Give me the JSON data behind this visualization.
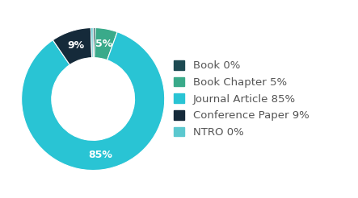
{
  "labels": [
    "Book",
    "Book Chapter",
    "Journal Article",
    "Conference Paper",
    "NTRO"
  ],
  "values": [
    0.5,
    5,
    85,
    9,
    0.5
  ],
  "display_pcts": [
    "0%",
    "5%",
    "85%",
    "9%",
    "0%"
  ],
  "colors": [
    "#1d4a52",
    "#3aaa8a",
    "#29c4d4",
    "#152a3a",
    "#5bc8cf"
  ],
  "legend_labels": [
    "Book 0%",
    "Book Chapter 5%",
    "Journal Article 85%",
    "Conference Paper 9%",
    "NTRO 0%"
  ],
  "legend_colors": [
    "#1d4a52",
    "#3aaa8a",
    "#29c4d4",
    "#152a3a",
    "#5bc8cf"
  ],
  "wedge_text_color": "#ffffff",
  "background_color": "#ffffff",
  "donut_width": 0.42,
  "startangle": 90,
  "text_fontsize": 9,
  "legend_fontsize": 9.5
}
